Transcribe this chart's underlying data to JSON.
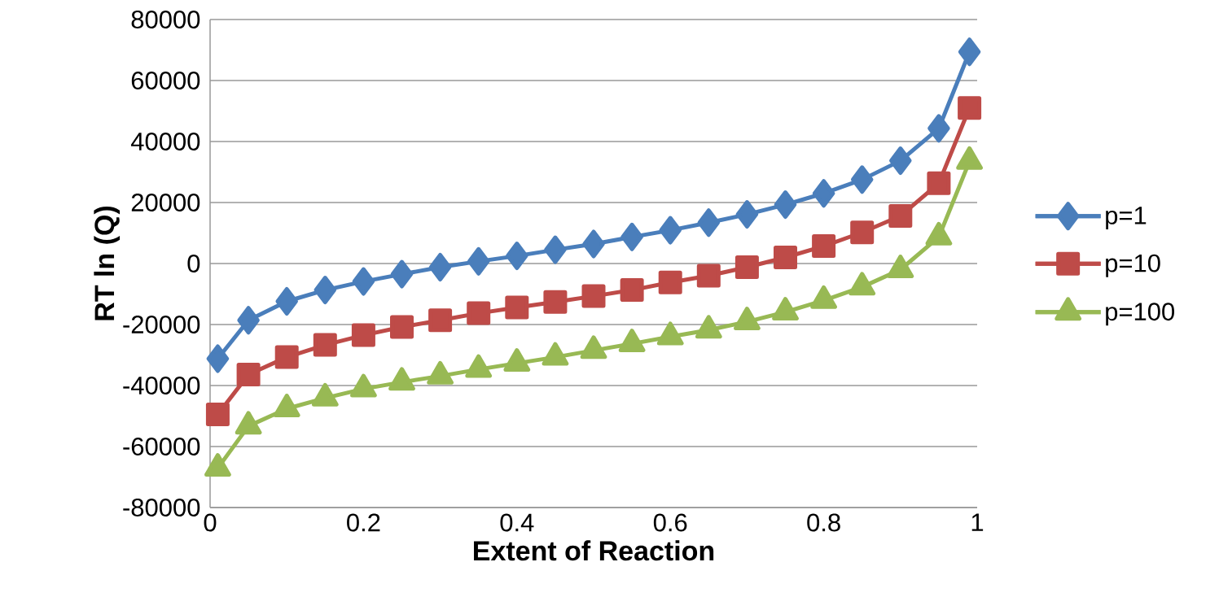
{
  "chart_data": {
    "type": "line",
    "xlabel": "Extent of Reaction",
    "ylabel": "RT ln (Q)",
    "x": [
      0.01,
      0.05,
      0.1,
      0.15,
      0.2,
      0.25,
      0.3,
      0.35,
      0.4,
      0.45,
      0.5,
      0.55,
      0.6,
      0.65,
      0.7,
      0.75,
      0.8,
      0.85,
      0.9,
      0.95,
      0.99
    ],
    "series": [
      {
        "name": "p=1",
        "color": "#4a7ebb",
        "marker": "diamond",
        "values": [
          -31200,
          -18600,
          -12400,
          -8700,
          -5900,
          -3500,
          -1200,
          700,
          2500,
          4500,
          6400,
          8700,
          10900,
          13400,
          16100,
          19300,
          23000,
          27500,
          33700,
          44300,
          69400
        ]
      },
      {
        "name": "p=10",
        "color": "#be4b48",
        "marker": "square",
        "values": [
          -49500,
          -36400,
          -30700,
          -26700,
          -23500,
          -20800,
          -18600,
          -16300,
          -14400,
          -12600,
          -10700,
          -8700,
          -6200,
          -4000,
          -1200,
          2000,
          5700,
          10200,
          15600,
          26300,
          51000
        ]
      },
      {
        "name": "p=100",
        "color": "#98b954",
        "marker": "triangle",
        "values": [
          -67100,
          -53300,
          -47600,
          -44100,
          -41100,
          -38900,
          -36900,
          -34700,
          -32700,
          -30700,
          -28500,
          -26300,
          -24000,
          -21800,
          -19100,
          -15900,
          -12100,
          -7700,
          -2000,
          8700,
          33500
        ]
      }
    ],
    "xlim": [
      0,
      1
    ],
    "xticks": [
      0,
      0.2,
      0.4,
      0.6,
      0.8,
      1
    ],
    "ylim": [
      -80000,
      80000
    ],
    "yticks": [
      -80000,
      -60000,
      -40000,
      -20000,
      0,
      20000,
      40000,
      60000,
      80000
    ],
    "grid": "y",
    "legend": "right",
    "line_style": "solid"
  }
}
